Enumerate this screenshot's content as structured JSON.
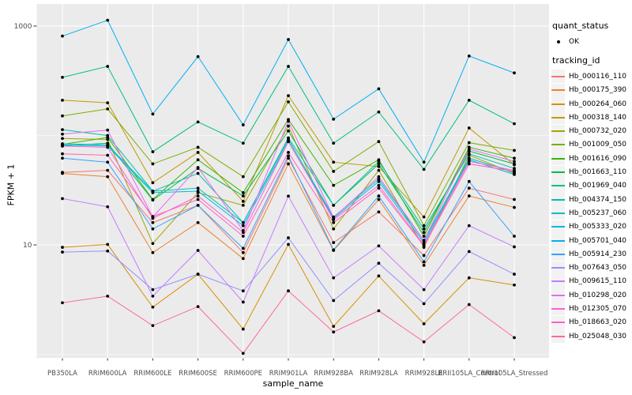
{
  "chart_data": {
    "type": "line",
    "xlabel": "sample_name",
    "ylabel": "FPKM + 1",
    "y_scale": "log10",
    "panel_bg": "#EBEBEB",
    "gridline_color": "#FFFFFF",
    "point_color": "#000000",
    "tick_label_color": "#4D4D4D",
    "y_axis_ticks": [
      {
        "label": "1000",
        "value": 1000
      },
      {
        "label": "10",
        "value": 10
      }
    ],
    "y_major_gridlines": [
      1000,
      10
    ],
    "y_minor_gridlines": [
      100,
      1
    ],
    "categories": [
      "PB350LA",
      "RRIM600LA",
      "RRIM600LE",
      "RRIM600SE",
      "RRIM600PE",
      "RRIM901LA",
      "RRIM928BA",
      "RRIM928LA",
      "RRIM928LE",
      "RRII105LA_Control",
      "RRII105LA_Stressed"
    ],
    "series": [
      {
        "name": "Hb_000116_110",
        "color": "#F8766D",
        "values": [
          46,
          48,
          16,
          23,
          8.5,
          62,
          10.5,
          20,
          8,
          33,
          26
        ]
      },
      {
        "name": "Hb_000175_390",
        "color": "#EA8331",
        "values": [
          45,
          42,
          8.5,
          16,
          7.5,
          55,
          8.9,
          26,
          6.5,
          28,
          22
        ]
      },
      {
        "name": "Hb_000264_060",
        "color": "#D89000",
        "values": [
          9.5,
          10.1,
          2.7,
          5.4,
          1.7,
          10.1,
          1.8,
          5.2,
          1.9,
          5.0,
          4.3
        ]
      },
      {
        "name": "Hb_000318_140",
        "color": "#C09B00",
        "values": [
          210,
          199,
          37,
          70,
          25,
          231,
          57,
          52,
          18,
          117,
          54
        ]
      },
      {
        "name": "Hb_000732_020",
        "color": "#A3A500",
        "values": [
          94,
          92,
          10.3,
          30,
          23,
          122,
          14,
          48,
          9.5,
          66,
          45
        ]
      },
      {
        "name": "Hb_001009_050",
        "color": "#7CAE00",
        "values": [
          151,
          175,
          55,
          78,
          42,
          203,
          47,
          88,
          15,
          86,
          73
        ]
      },
      {
        "name": "Hb_001616_090",
        "color": "#39B600",
        "values": [
          83,
          96,
          26,
          60,
          30,
          140,
          35,
          60,
          12,
          78,
          62
        ]
      },
      {
        "name": "Hb_001663_110",
        "color": "#00BB4E",
        "values": [
          80,
          85,
          25.7,
          50,
          28,
          110,
          23,
          55,
          13,
          72,
          55
        ]
      },
      {
        "name": "Hb_001969_040",
        "color": "#00BF7D",
        "values": [
          340,
          428,
          71,
          133,
          85,
          428,
          85,
          164,
          49,
          210,
          128
        ]
      },
      {
        "name": "Hb_004374_150",
        "color": "#00C1A3",
        "values": [
          113,
          100,
          31,
          45,
          16,
          95,
          23,
          58,
          14,
          68,
          50
        ]
      },
      {
        "name": "Hb_005237_060",
        "color": "#00BFC4",
        "values": [
          84,
          82,
          31,
          33,
          16,
          92,
          18,
          40,
          11,
          62,
          46
        ]
      },
      {
        "name": "Hb_005333_020",
        "color": "#00BAE0",
        "values": [
          82,
          80,
          30,
          31,
          15,
          88,
          17.5,
          38,
          10.5,
          60,
          44
        ]
      },
      {
        "name": "Hb_005701_040",
        "color": "#00B0F6",
        "values": [
          810,
          1130,
          157,
          526,
          125,
          754,
          141,
          267,
          57,
          533,
          373
        ]
      },
      {
        "name": "Hb_005914_230",
        "color": "#35A2FF",
        "values": [
          62,
          57,
          14,
          23,
          9.3,
          65,
          9,
          28,
          7,
          38,
          12
        ]
      },
      {
        "name": "Hb_007643_050",
        "color": "#9590FF",
        "values": [
          8.6,
          8.8,
          3.9,
          5.4,
          3.8,
          11.6,
          3.1,
          6.8,
          2.9,
          8.7,
          5.4
        ]
      },
      {
        "name": "Hb_009615_110",
        "color": "#C77CFF",
        "values": [
          26.5,
          22.3,
          3.4,
          8.9,
          3.0,
          27.9,
          5.0,
          9.8,
          3.9,
          15,
          9.6
        ]
      },
      {
        "name": "Hb_010298_020",
        "color": "#E76BF3",
        "values": [
          103,
          112,
          18,
          51,
          13.5,
          135,
          17.8,
          42,
          11,
          75,
          58
        ]
      },
      {
        "name": "Hb_012305_070",
        "color": "#FA62DB",
        "values": [
          80,
          78,
          17.5,
          28,
          13,
          88,
          17,
          35,
          10,
          58,
          48
        ]
      },
      {
        "name": "Hb_018663_020",
        "color": "#FF62BC",
        "values": [
          68,
          66,
          18.2,
          26,
          12,
          70,
          16,
          33,
          9.8,
          55,
          47
        ]
      },
      {
        "name": "Hb_025048_030",
        "color": "#FF6A98",
        "values": [
          2.96,
          3.4,
          1.83,
          2.73,
          1.02,
          3.8,
          1.6,
          2.5,
          1.3,
          2.85,
          1.42
        ]
      }
    ]
  },
  "legend": {
    "quant_status": {
      "title": "quant_status",
      "items": [
        {
          "label": "OK",
          "marker": "point",
          "color": "#000000"
        }
      ]
    },
    "tracking_id": {
      "title": "tracking_id"
    }
  }
}
